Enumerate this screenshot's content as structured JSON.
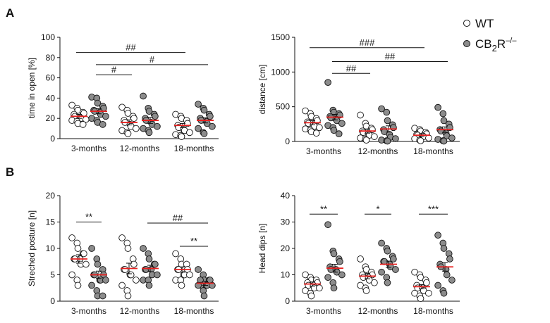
{
  "panel_letters": [
    "A",
    "B"
  ],
  "legend": {
    "wt_label": "WT",
    "ko_label_base": "CB",
    "ko_label_sub": "2",
    "ko_label_rest": "R",
    "ko_label_sup": "–/–",
    "wt_color": "#ffffff",
    "ko_color": "#8c8c8c",
    "mean_color": "#e8201f"
  },
  "chart_data": [
    {
      "type": "scatter",
      "ylabel": "time in open [%]",
      "ylim": [
        0,
        100
      ],
      "yticks": [
        "0",
        "20",
        "40",
        "60",
        "80",
        "100"
      ],
      "categories": [
        "3-months",
        "12-months",
        "18-months"
      ],
      "series": [
        {
          "name": "WT",
          "means": [
            22,
            16,
            13
          ],
          "sem": [
            2,
            2.5,
            2
          ],
          "points": [
            [
              33,
              30,
              28,
              26,
              25,
              24,
              22,
              21,
              20,
              19,
              18,
              17,
              15,
              14
            ],
            [
              31,
              28,
              25,
              22,
              20,
              18,
              16,
              14,
              12,
              10,
              8,
              6,
              5
            ],
            [
              24,
              22,
              20,
              18,
              15,
              13,
              11,
              9,
              8,
              6,
              4,
              3,
              2
            ]
          ]
        },
        {
          "name": "CB2R-/-",
          "means": [
            27,
            18,
            18
          ],
          "sem": [
            2.5,
            3,
            2.5
          ],
          "points": [
            [
              41,
              40,
              35,
              32,
              30,
              28,
              27,
              26,
              24,
              22,
              20,
              18,
              16,
              14
            ],
            [
              42,
              30,
              27,
              24,
              22,
              20,
              18,
              16,
              14,
              12,
              10,
              8,
              6
            ],
            [
              34,
              30,
              28,
              24,
              22,
              20,
              18,
              17,
              15,
              12,
              10,
              6,
              5
            ]
          ]
        }
      ],
      "significance": [
        {
          "label": "##",
          "from": "3-months WT",
          "to": "18-months WT",
          "y": 85
        },
        {
          "label": "#",
          "from": "3-months CB2R-/-",
          "to": "12-months WT",
          "y": 63
        },
        {
          "label": "#",
          "from": "3-months CB2R-/-",
          "to": "18-months CB2R-/-",
          "y": 73
        }
      ]
    },
    {
      "type": "scatter",
      "ylabel": "distance [cm]",
      "ylim": [
        0,
        1500
      ],
      "yticks": [
        "0",
        "500",
        "1000",
        "1500"
      ],
      "categories": [
        "3-months",
        "12-months",
        "18-months"
      ],
      "series": [
        {
          "name": "WT",
          "means": [
            270,
            150,
            90
          ],
          "sem": [
            30,
            30,
            20
          ],
          "points": [
            [
              440,
              400,
              360,
              330,
              300,
              280,
              260,
              240,
              220,
              200,
              180,
              160,
              140,
              120
            ],
            [
              380,
              260,
              220,
              190,
              170,
              150,
              130,
              110,
              90,
              70,
              50,
              30,
              20
            ],
            [
              190,
              170,
              150,
              130,
              110,
              100,
              90,
              80,
              70,
              50,
              40,
              20,
              10
            ]
          ]
        },
        {
          "name": "CB2R-/-",
          "means": [
            350,
            180,
            170
          ],
          "sem": [
            40,
            45,
            40
          ],
          "points": [
            [
              850,
              450,
              420,
              400,
              380,
              360,
              340,
              320,
              300,
              260,
              230,
              200,
              160,
              110
            ],
            [
              470,
              420,
              300,
              240,
              200,
              170,
              140,
              100,
              60,
              40,
              20,
              10,
              5
            ],
            [
              490,
              400,
              300,
              250,
              200,
              170,
              150,
              120,
              80,
              50,
              30,
              10,
              5
            ]
          ]
        }
      ],
      "significance": [
        {
          "label": "###",
          "from": "3-months WT",
          "to": "18-months WT",
          "y": 1350
        },
        {
          "label": "##",
          "from": "3-months CB2R-/-",
          "to": "18-months CB2R-/-",
          "y": 1150
        },
        {
          "label": "##",
          "from": "3-months CB2R-/-",
          "to": "12-months WT",
          "y": 980
        }
      ]
    },
    {
      "type": "scatter",
      "ylabel": "Streched posture [n]",
      "ylim": [
        0,
        20
      ],
      "yticks": [
        "0",
        "5",
        "10",
        "15",
        "20"
      ],
      "categories": [
        "3-months",
        "12-months",
        "18-months"
      ],
      "series": [
        {
          "name": "WT",
          "means": [
            8,
            6.2,
            6
          ],
          "sem": [
            0.8,
            1,
            0.5
          ],
          "points": [
            [
              12,
              11,
              10,
              9,
              9,
              8,
              8,
              8,
              7,
              7,
              5,
              4,
              3
            ],
            [
              12,
              11,
              10,
              8,
              7,
              6,
              6,
              5,
              5,
              4,
              3,
              2,
              1
            ],
            [
              9,
              8,
              7,
              7,
              6,
              6,
              6,
              5,
              5,
              5,
              4,
              4,
              3
            ]
          ]
        },
        {
          "name": "CB2R-/-",
          "means": [
            5,
            6.2,
            3.4
          ],
          "sem": [
            0.7,
            0.6,
            0.4
          ],
          "points": [
            [
              10,
              8,
              7,
              6,
              5,
              5,
              5,
              4,
              4,
              4,
              3,
              2,
              1,
              1
            ],
            [
              10,
              9,
              8,
              7,
              7,
              6,
              6,
              6,
              5,
              5,
              4,
              4,
              3
            ],
            [
              6,
              5,
              4,
              4,
              4,
              4,
              3,
              3,
              3,
              3,
              3,
              2,
              1
            ]
          ]
        }
      ],
      "significance": [
        {
          "label": "**",
          "from": "3-months WT",
          "to": "3-months CB2R-/-",
          "y": 15
        },
        {
          "label": "##",
          "from": "12-months CB2R-/-",
          "to": "18-months CB2R-/-",
          "y": 14.8
        },
        {
          "label": "**",
          "from": "18-months WT",
          "to": "18-months CB2R-/-",
          "y": 10.4
        }
      ]
    },
    {
      "type": "scatter",
      "ylabel": "Head dips [n]",
      "ylim": [
        0,
        40
      ],
      "yticks": [
        "0",
        "10",
        "20",
        "30",
        "40"
      ],
      "categories": [
        "3-months",
        "12-months",
        "18-months"
      ],
      "series": [
        {
          "name": "WT",
          "means": [
            6.5,
            9.5,
            5.5
          ],
          "sem": [
            0.8,
            1,
            0.8
          ],
          "points": [
            [
              10,
              9,
              8,
              8,
              7,
              7,
              6,
              6,
              5,
              5,
              4,
              3,
              2
            ],
            [
              16,
              13,
              12,
              11,
              10,
              10,
              9,
              9,
              8,
              7,
              6,
              5,
              4
            ],
            [
              11,
              10,
              9,
              8,
              7,
              6,
              5,
              5,
              4,
              3,
              3,
              2,
              1
            ]
          ]
        },
        {
          "name": "CB2R-/-",
          "means": [
            12.5,
            14,
            13
          ],
          "sem": [
            1.5,
            1.2,
            1.6
          ],
          "points": [
            [
              29,
              19,
              18,
              16,
              15,
              13,
              12,
              12,
              11,
              10,
              9,
              7,
              5
            ],
            [
              22,
              20,
              19,
              17,
              16,
              15,
              15,
              14,
              13,
              12,
              11,
              9,
              7
            ],
            [
              25,
              22,
              20,
              18,
              16,
              14,
              13,
              12,
              10,
              8,
              6,
              4,
              3
            ]
          ]
        }
      ],
      "significance": [
        {
          "label": "**",
          "from": "3-months WT",
          "to": "3-months CB2R-/-",
          "y": 33
        },
        {
          "label": "*",
          "from": "12-months WT",
          "to": "12-months CB2R-/-",
          "y": 33
        },
        {
          "label": "***",
          "from": "18-months WT",
          "to": "18-months CB2R-/-",
          "y": 33
        }
      ]
    }
  ]
}
